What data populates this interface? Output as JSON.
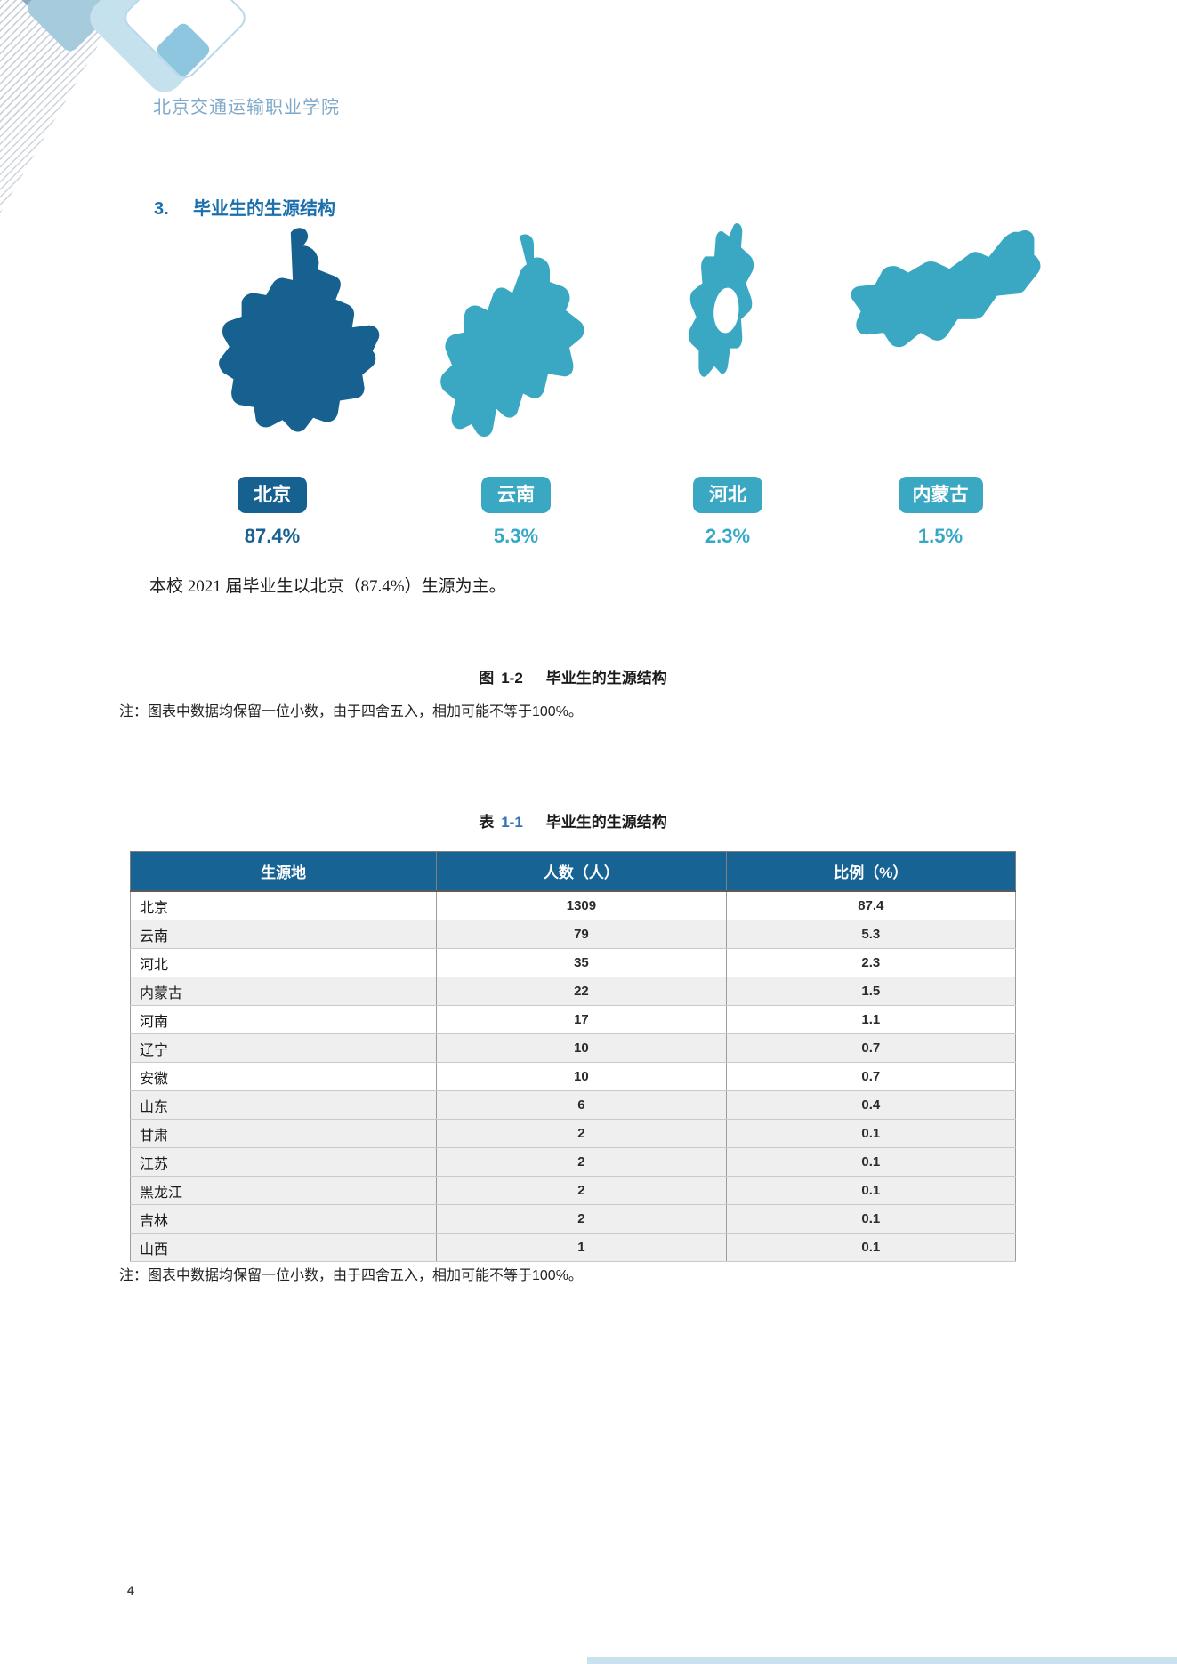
{
  "header": {
    "college_name": "北京交通运输职业学院"
  },
  "section": {
    "number": "3.",
    "title": "毕业生的生源结构"
  },
  "figure": {
    "provinces": [
      {
        "name": "北京",
        "percent": "87.4%",
        "color": "#16618f",
        "text_color": "#16618f"
      },
      {
        "name": "云南",
        "percent": "5.3%",
        "color": "#3aa7c3",
        "text_color": "#35a8c6"
      },
      {
        "name": "河北",
        "percent": "2.3%",
        "color": "#3aa7c3",
        "text_color": "#35a8c6"
      },
      {
        "name": "内蒙古",
        "percent": "1.5%",
        "color": "#3aa7c3",
        "text_color": "#35a8c6"
      }
    ],
    "caption": {
      "prefix": "图",
      "number": "1-2",
      "title": "毕业生的生源结构"
    },
    "note": "注：图表中数据均保留一位小数，由于四舍五入，相加可能不等于100%。"
  },
  "summary": "本校 2021 届毕业生以北京（87.4%）生源为主。",
  "table": {
    "caption": {
      "prefix": "表",
      "number": "1-1",
      "title": "毕业生的生源结构"
    },
    "headers": [
      "生源地",
      "人数（人）",
      "比例（%）"
    ],
    "rows": [
      [
        "北京",
        "1309",
        "87.4"
      ],
      [
        "云南",
        "79",
        "5.3"
      ],
      [
        "河北",
        "35",
        "2.3"
      ],
      [
        "内蒙古",
        "22",
        "1.5"
      ],
      [
        "河南",
        "17",
        "1.1"
      ],
      [
        "辽宁",
        "10",
        "0.7"
      ],
      [
        "安徽",
        "10",
        "0.7"
      ],
      [
        "山东",
        "6",
        "0.4"
      ],
      [
        "甘肃",
        "2",
        "0.1"
      ],
      [
        "江苏",
        "2",
        "0.1"
      ],
      [
        "黑龙江",
        "2",
        "0.1"
      ],
      [
        "吉林",
        "2",
        "0.1"
      ],
      [
        "山西",
        "1",
        "0.1"
      ]
    ],
    "note": "注：图表中数据均保留一位小数，由于四舍五入，相加可能不等于100%。"
  },
  "chart_data": {
    "type": "pictorial-map",
    "title": "毕业生的生源结构",
    "categories": [
      "北京",
      "云南",
      "河北",
      "内蒙古"
    ],
    "values": [
      87.4,
      5.3,
      2.3,
      1.5
    ],
    "unit": "%",
    "colors": [
      "#16618f",
      "#3aa7c3",
      "#3aa7c3",
      "#3aa7c3"
    ]
  },
  "page": {
    "number": "4"
  }
}
